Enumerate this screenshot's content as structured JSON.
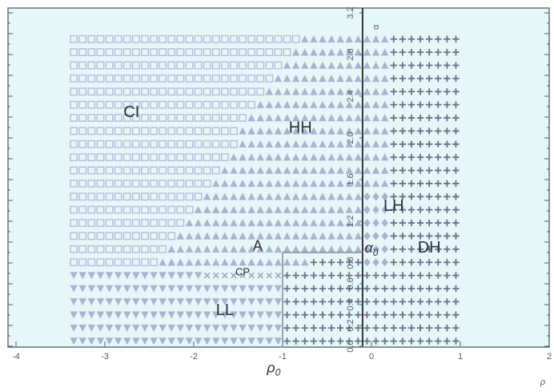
{
  "chart_data": {
    "type": "scatter",
    "x_range": [
      -4,
      2
    ],
    "y_range": [
      0,
      3.2
    ],
    "x_ticks": [
      -4,
      -3,
      -2,
      -1,
      0,
      1,
      2
    ],
    "y_ticks": [
      0.0,
      0.2,
      0.4,
      0.6,
      0.8,
      1.2,
      1.6,
      2.0,
      2.4,
      2.8,
      3.2
    ],
    "x_tick_labels": [
      "-4",
      "-3",
      "-2",
      "-1",
      "0",
      "1",
      "2"
    ],
    "y_tick_labels": [
      "0.0",
      "0.2",
      "0.4",
      "0.6",
      "0.8",
      "1.2",
      "1.6",
      "2.0",
      "2.4",
      "2.8",
      "3.2"
    ],
    "xlabel": "ρ",
    "y_axis_top_label": "α",
    "grid": false,
    "markers": {
      "CI": {
        "symbol": "open-square",
        "color": "#b3bdd9"
      },
      "HH": {
        "symbol": "triangle-up",
        "color": "#a9b3d2"
      },
      "LL": {
        "symbol": "triangle-down",
        "color": "#a9b3d2"
      },
      "LH": {
        "symbol": "diamond",
        "color": "#a9b3d2"
      },
      "DH": {
        "symbol": "plus",
        "color": "#6a7186"
      },
      "CP": {
        "symbol": "cross",
        "color": "#a0a7bd"
      }
    },
    "boundary_x": -1.0,
    "boundary_y": 0.9,
    "vertical_axis_x": -0.1,
    "annotations": [
      {
        "text": "CI",
        "x": -2.7,
        "y": 2.2
      },
      {
        "text": "HH",
        "x": -0.8,
        "y": 2.05
      },
      {
        "text": "LH",
        "x": 0.25,
        "y": 1.3
      },
      {
        "text": "DH",
        "x": 0.65,
        "y": 0.9
      },
      {
        "text": "LL",
        "x": -1.65,
        "y": 0.3
      },
      {
        "text": "A",
        "x": -1.28,
        "y": 0.92
      },
      {
        "text": "CP",
        "x": -1.45,
        "y": 0.68
      },
      {
        "text": "ρ0",
        "x": -1.1,
        "y": -0.25
      },
      {
        "text": "α0",
        "x": 0.0,
        "y": 0.9
      }
    ]
  }
}
